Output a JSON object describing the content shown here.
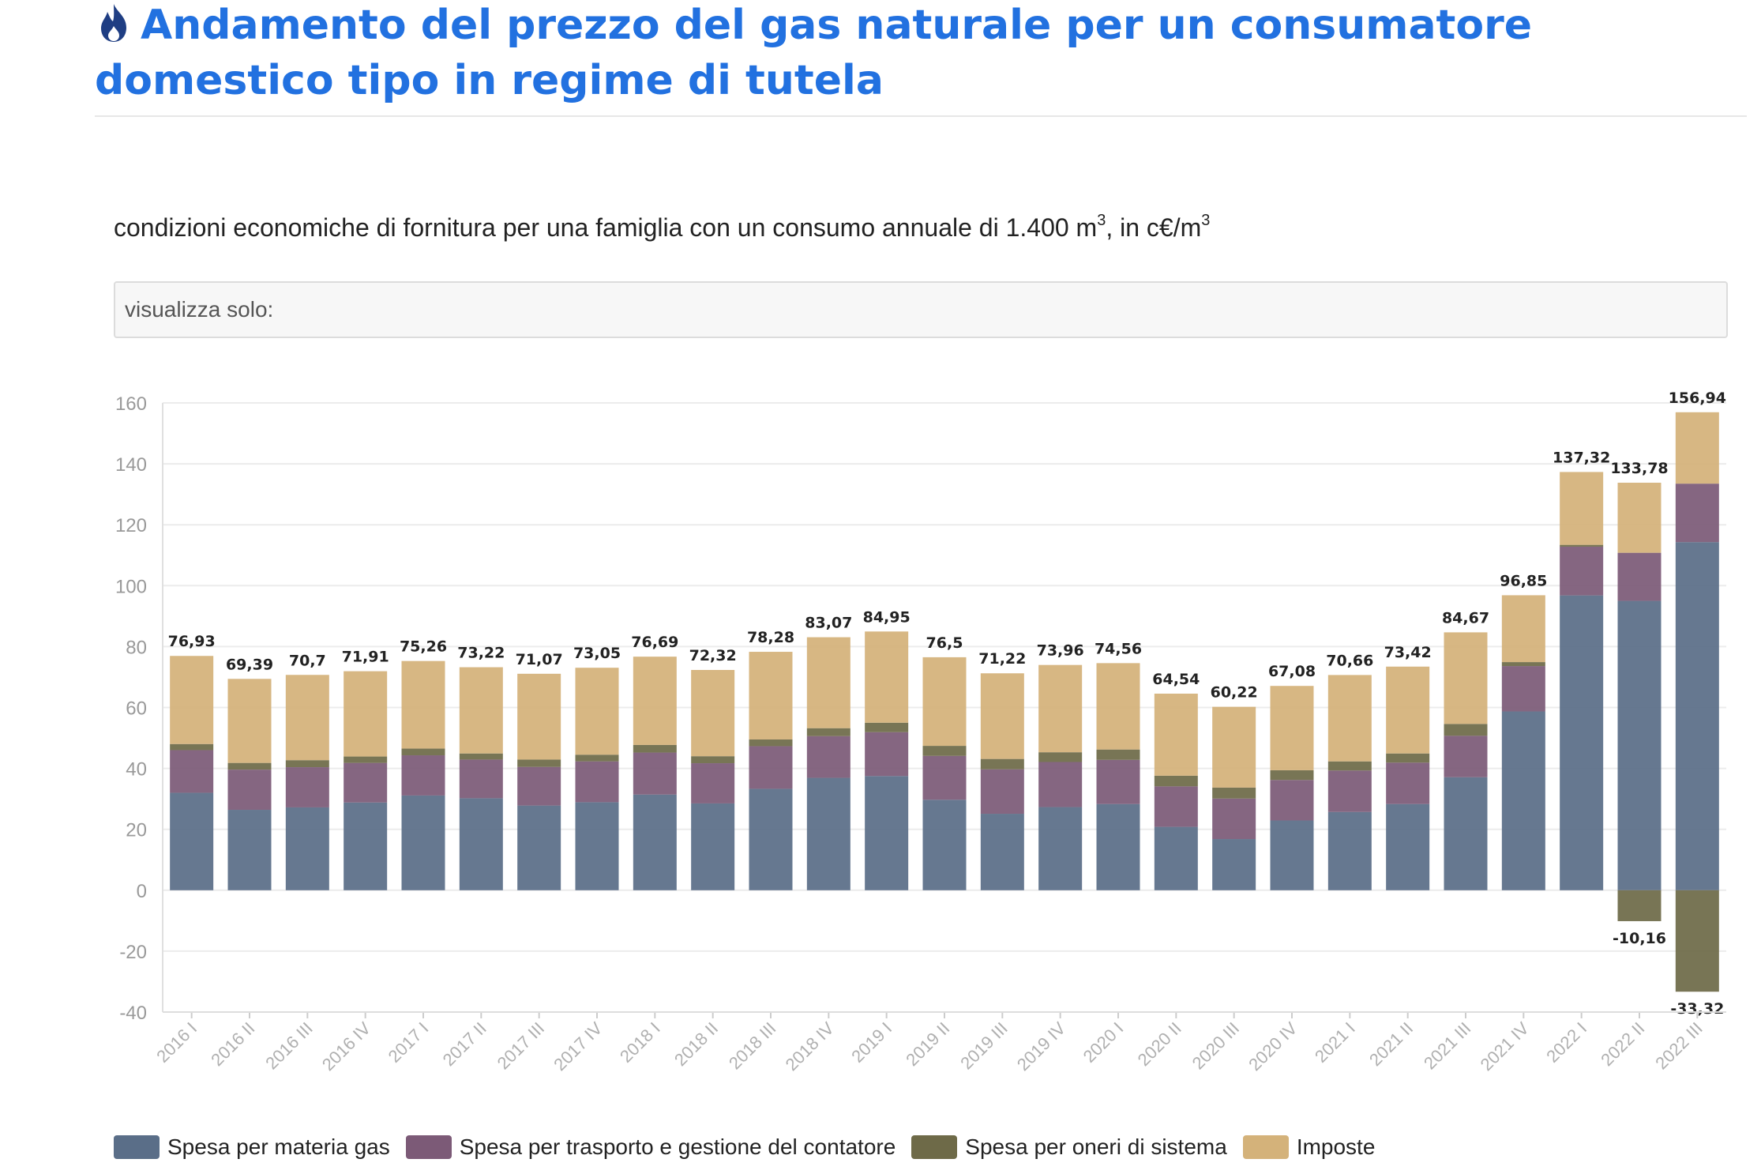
{
  "page": {
    "title": "Andamento del prezzo del gas naturale per un consumatore domestico tipo in regime di tutela",
    "title_icon": "flame-icon",
    "title_color": "#2271e0",
    "filter_label": "visualizza solo:"
  },
  "chart_data": {
    "type": "bar",
    "stacked": true,
    "subtitle_main": "condizioni economiche di fornitura per una famiglia con un consumo annuale di 1.400 m",
    "subtitle_sup": "3",
    "subtitle_mid": ", in c€/m",
    "grid": true,
    "legend_position": "bottom-left",
    "ylim": [
      -40,
      160
    ],
    "yticks": [
      "160",
      "140",
      "120",
      "100",
      "80",
      "60",
      "40",
      "20",
      "0",
      "-20",
      "-40"
    ],
    "categories": [
      "2016 I",
      "2016 II",
      "2016 III",
      "2016 IV",
      "2017 I",
      "2017 II",
      "2017 III",
      "2017 IV",
      "2018 I",
      "2018 II",
      "2018 III",
      "2018 IV",
      "2019 I",
      "2019 II",
      "2019 III",
      "2019 IV",
      "2020 I",
      "2020 II",
      "2020 III",
      "2020 IV",
      "2021 I",
      "2021 II",
      "2021 III",
      "2021 IV",
      "2022 I",
      "2022 II",
      "2022 III"
    ],
    "series": [
      {
        "name": "Spesa per materia gas",
        "color": "#5a6e88",
        "values": [
          32.0,
          26.4,
          27.2,
          28.8,
          31.1,
          30.2,
          27.8,
          28.9,
          31.4,
          28.5,
          33.3,
          36.9,
          37.5,
          29.7,
          25.1,
          27.3,
          28.3,
          20.8,
          16.8,
          22.9,
          25.7,
          28.3,
          37.1,
          58.7,
          96.8,
          95.0,
          114.3
        ]
      },
      {
        "name": "Spesa per trasporto e gestione del contatore",
        "color": "#7c5a77",
        "values": [
          14.0,
          13.2,
          13.2,
          13.0,
          13.2,
          12.7,
          12.7,
          13.4,
          13.8,
          13.2,
          14.0,
          13.7,
          14.4,
          14.4,
          14.6,
          14.8,
          14.5,
          13.3,
          13.3,
          13.3,
          13.6,
          13.6,
          13.6,
          14.9,
          16.0,
          15.8,
          19.2
        ]
      },
      {
        "name": "Spesa per oneri di sistema",
        "color": "#6e6a48",
        "values": [
          2.0,
          2.2,
          2.3,
          2.1,
          2.2,
          2.0,
          2.4,
          2.2,
          2.5,
          2.3,
          2.2,
          2.6,
          3.1,
          3.3,
          3.4,
          3.2,
          3.4,
          3.5,
          3.6,
          3.2,
          3.0,
          3.0,
          3.9,
          1.3,
          0.6,
          -10.16,
          -33.32
        ]
      },
      {
        "name": "Imposte",
        "color": "#d4b27a",
        "values": [
          28.93,
          27.59,
          28.0,
          28.01,
          28.76,
          28.32,
          28.17,
          28.55,
          28.99,
          28.32,
          28.78,
          29.87,
          29.95,
          29.1,
          28.12,
          28.66,
          28.36,
          26.94,
          26.52,
          27.68,
          28.36,
          28.52,
          30.07,
          21.95,
          23.92,
          23.0,
          23.44
        ]
      }
    ],
    "total_labels": [
      "76,93",
      "69,39",
      "70,7",
      "71,91",
      "75,26",
      "73,22",
      "71,07",
      "73,05",
      "76,69",
      "72,32",
      "78,28",
      "83,07",
      "84,95",
      "76,5",
      "71,22",
      "73,96",
      "74,56",
      "64,54",
      "60,22",
      "67,08",
      "70,66",
      "73,42",
      "84,67",
      "96,85",
      "137,32",
      "133,78",
      "156,94"
    ],
    "negative_labels": [
      null,
      null,
      null,
      null,
      null,
      null,
      null,
      null,
      null,
      null,
      null,
      null,
      null,
      null,
      null,
      null,
      null,
      null,
      null,
      null,
      null,
      null,
      null,
      null,
      null,
      "-10,16",
      "-33,32"
    ]
  }
}
